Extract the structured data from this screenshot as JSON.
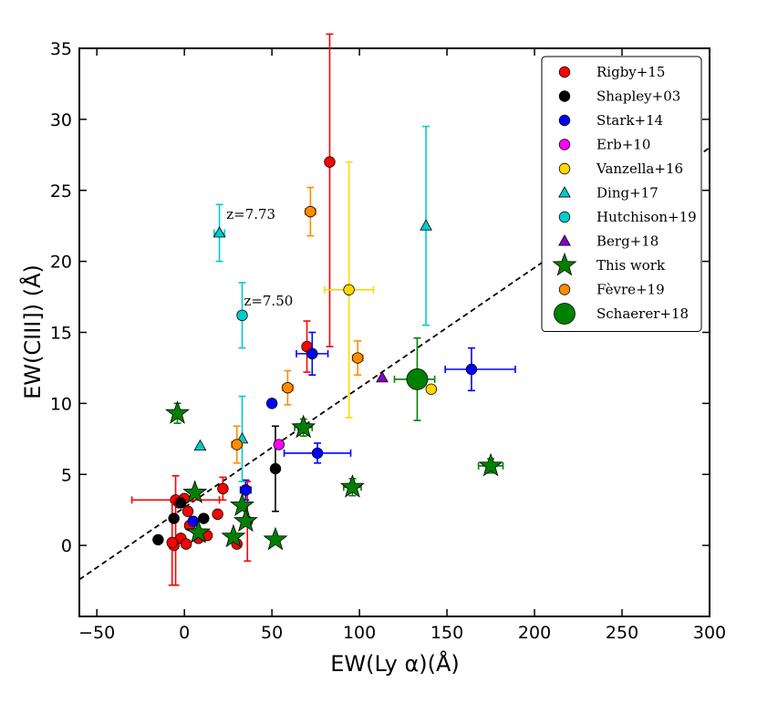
{
  "chart_data": {
    "type": "scatter",
    "xlabel": "EW(Ly α)(Å)",
    "ylabel": "EW(CIII]) (Å)",
    "xlim": [
      -60,
      300
    ],
    "ylim": [
      -5,
      35
    ],
    "xticks": [
      -50,
      0,
      50,
      100,
      150,
      200,
      250,
      300
    ],
    "xtick_labels": [
      "−50",
      "0",
      "50",
      "100",
      "150",
      "200",
      "250",
      "300"
    ],
    "yticks": [
      0,
      5,
      10,
      15,
      20,
      25,
      30,
      35
    ],
    "ytick_labels": [
      "0",
      "5",
      "10",
      "15",
      "20",
      "25",
      "30",
      "35"
    ],
    "fit_line": {
      "style": "dashed",
      "color": "#000000",
      "x": [
        -60,
        300
      ],
      "y": [
        -2.4,
        28
      ]
    },
    "annotations": [
      {
        "text": "z=7.73",
        "x": 24,
        "y": 23.0
      },
      {
        "text": "z=7.50",
        "x": 34,
        "y": 16.9
      }
    ],
    "legend": {
      "position": "top-right"
    },
    "colors": {
      "Rigby+15": "#ff0000",
      "Shapley+03": "#000000",
      "Stark+14": "#0000ff",
      "Erb+10": "#ff00ff",
      "Vanzella+16": "#ffd700",
      "Ding+17": "#00cccc",
      "Hutchison+19": "#00cccc",
      "Berg+18": "#8a00c8",
      "This work": "#008000",
      "Fèvre+19": "#ff8c00",
      "Schaerer+18": "#008000"
    },
    "series": [
      {
        "name": "Rigby+15",
        "marker": "circle",
        "color": "#ff0000",
        "points": [
          {
            "x": 83,
            "y": 27,
            "yerr": [
              13,
              9
            ]
          },
          {
            "x": 70,
            "y": 14,
            "yerr": [
              1.8,
              1.8
            ]
          },
          {
            "x": 22,
            "y": 4,
            "yerr": [
              0.8,
              0.8
            ]
          },
          {
            "x": 19,
            "y": 2.2
          },
          {
            "x": -5,
            "y": 3.2,
            "yerr": [
              6,
              1.7
            ],
            "xerr": [
              25,
              25
            ]
          },
          {
            "x": -3,
            "y": 3.0
          },
          {
            "x": 0,
            "y": 3.3,
            "xerr": [
              4,
              4
            ]
          },
          {
            "x": 2,
            "y": 2.4
          },
          {
            "x": 3,
            "y": 1.4
          },
          {
            "x": -2,
            "y": 0.5
          },
          {
            "x": 1,
            "y": 0.1
          },
          {
            "x": -6,
            "y": 0.0
          },
          {
            "x": 8,
            "y": 0.5
          },
          {
            "x": 13,
            "y": 0.7
          },
          {
            "x": 30,
            "y": 0.1
          },
          {
            "x": 36,
            "y": 1.7,
            "yerr": [
              2.8,
              2.8
            ]
          },
          {
            "x": -7,
            "y": 0.2,
            "yerr": [
              3,
              3
            ]
          }
        ]
      },
      {
        "name": "Shapley+03",
        "marker": "circle",
        "color": "#000000",
        "points": [
          {
            "x": 52,
            "y": 5.4,
            "yerr": [
              3,
              3
            ]
          },
          {
            "x": -2,
            "y": 3.0
          },
          {
            "x": -15,
            "y": 0.4
          },
          {
            "x": -6,
            "y": 1.9
          },
          {
            "x": 11,
            "y": 1.9
          }
        ]
      },
      {
        "name": "Stark+14",
        "marker": "circle",
        "color": "#0000ff",
        "points": [
          {
            "x": 164,
            "y": 12.4,
            "xerr": [
              15,
              25
            ],
            "yerr": [
              1.5,
              1.5
            ]
          },
          {
            "x": 73,
            "y": 13.5,
            "xerr": [
              9,
              9
            ],
            "yerr": [
              1.5,
              1.5
            ]
          },
          {
            "x": 50,
            "y": 10.0
          },
          {
            "x": 76,
            "y": 6.5,
            "xerr": [
              19,
              19
            ],
            "yerr": [
              0.7,
              0.7
            ]
          },
          {
            "x": 35,
            "y": 3.9,
            "xerr": [
              3,
              3
            ],
            "yerr": [
              0.7,
              0.7
            ]
          },
          {
            "x": 5,
            "y": 1.7
          }
        ]
      },
      {
        "name": "Erb+10",
        "marker": "circle",
        "color": "#ff00ff",
        "points": [
          {
            "x": 54,
            "y": 7.1
          }
        ]
      },
      {
        "name": "Vanzella+16",
        "marker": "circle",
        "color": "#ffd700",
        "points": [
          {
            "x": 94,
            "y": 18,
            "xerr": [
              14,
              14
            ],
            "yerr": [
              9,
              9
            ]
          },
          {
            "x": 141,
            "y": 11.0
          }
        ]
      },
      {
        "name": "Ding+17",
        "marker": "triangle",
        "color": "#00cccc",
        "points": [
          {
            "x": 20,
            "y": 22,
            "xerr": [
              3,
              3
            ],
            "yerr": [
              2,
              2
            ]
          },
          {
            "x": 138,
            "y": 22.5,
            "yerr": [
              7,
              7
            ]
          },
          {
            "x": 9,
            "y": 7.0
          },
          {
            "x": 33,
            "y": 7.5,
            "yerr": [
              3,
              3
            ]
          }
        ]
      },
      {
        "name": "Hutchison+19",
        "marker": "circle",
        "color": "#00cccc",
        "points": [
          {
            "x": 33,
            "y": 16.2,
            "xerr": [
              2,
              2
            ],
            "yerr": [
              2.3,
              2.3
            ]
          }
        ]
      },
      {
        "name": "Berg+18",
        "marker": "triangle",
        "color": "#8a00c8",
        "points": [
          {
            "x": 113,
            "y": 11.8
          }
        ]
      },
      {
        "name": "This work",
        "marker": "star",
        "color": "#008000",
        "points": [
          {
            "x": -4,
            "y": 9.3,
            "yerr": [
              0.7,
              0.7
            ]
          },
          {
            "x": 68,
            "y": 8.3,
            "xerr": [
              5,
              5
            ],
            "yerr": [
              0.6,
              0.6
            ]
          },
          {
            "x": 96,
            "y": 4.1,
            "xerr": [
              5,
              5
            ],
            "yerr": [
              0.6,
              0.6
            ]
          },
          {
            "x": 175,
            "y": 5.6,
            "xerr": [
              7,
              7
            ],
            "yerr": [
              0.5,
              0.5
            ]
          },
          {
            "x": 6,
            "y": 3.7
          },
          {
            "x": 33,
            "y": 2.8
          },
          {
            "x": 35,
            "y": 1.7
          },
          {
            "x": 28,
            "y": 0.6
          },
          {
            "x": 52,
            "y": 0.4
          },
          {
            "x": 8,
            "y": 0.9
          }
        ]
      },
      {
        "name": "Fèvre+19",
        "marker": "circle",
        "color": "#ff8c00",
        "points": [
          {
            "x": 72,
            "y": 23.5,
            "xerr": [
              3,
              3
            ],
            "yerr": [
              1.7,
              1.7
            ]
          },
          {
            "x": 99,
            "y": 13.2,
            "xerr": [
              3,
              3
            ],
            "yerr": [
              1.2,
              1.2
            ]
          },
          {
            "x": 59,
            "y": 11.1,
            "xerr": [
              3,
              3
            ],
            "yerr": [
              1.2,
              1.2
            ]
          },
          {
            "x": 30,
            "y": 7.1,
            "xerr": [
              3,
              3
            ],
            "yerr": [
              1.3,
              1.3
            ]
          }
        ]
      },
      {
        "name": "Schaerer+18",
        "marker": "big-circle",
        "color": "#008000",
        "points": [
          {
            "x": 133,
            "y": 11.7,
            "xerr": [
              13,
              10
            ],
            "yerr": [
              2.9,
              2.9
            ]
          }
        ]
      }
    ]
  }
}
